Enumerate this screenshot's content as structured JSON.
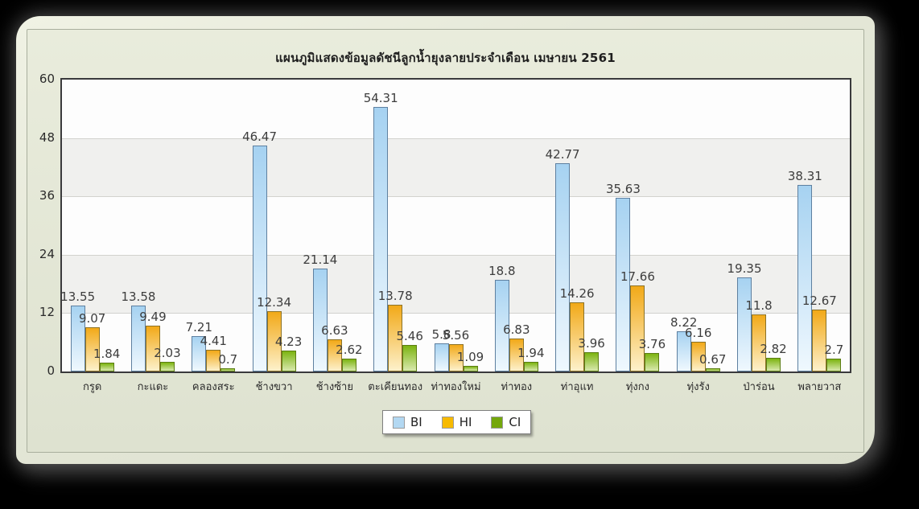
{
  "chart_data": {
    "type": "bar",
    "title": "แผนภูมิแสดงข้อมูลดัชนีลูกน้ำยุงลายประจำเดือน เมษายน  2561",
    "categories": [
      "กรูด",
      "กะแดะ",
      "คลองสระ",
      "ช้างขวา",
      "ช้างซ้าย",
      "ตะเคียนทอง",
      "ท่าทองใหม่",
      "ท่าทอง",
      "ท่าอุแท",
      "ทุ่งกง",
      "ทุ่งรัง",
      "ป่าร่อน",
      "พลายวาส"
    ],
    "series": [
      {
        "name": "BI",
        "values": [
          13.55,
          13.58,
          7.21,
          46.47,
          21.14,
          54.31,
          5.8,
          18.8,
          42.77,
          35.63,
          8.22,
          19.35,
          38.31
        ],
        "color_top": "#a6d2f1",
        "color_bottom": "#eff8fe",
        "border_color": "#5e80a0",
        "legend_swatch": "#b3d8f2"
      },
      {
        "name": "HI",
        "values": [
          9.07,
          9.49,
          4.41,
          12.34,
          6.63,
          13.78,
          5.56,
          6.83,
          14.26,
          17.66,
          6.16,
          11.8,
          12.67
        ],
        "color_top": "#f2a918",
        "color_bottom": "#fdf1cb",
        "border_color": "#8c7226",
        "legend_swatch": "#f7ba00"
      },
      {
        "name": "CI",
        "values": [
          1.84,
          2.03,
          0.7,
          4.23,
          2.62,
          5.46,
          1.09,
          1.94,
          3.96,
          3.76,
          0.67,
          2.82,
          2.7
        ],
        "color_top": "#7cb411",
        "color_bottom": "#d9e9ad",
        "border_color": "#5c7d14",
        "legend_swatch": "#74a70c"
      }
    ],
    "xlabel": "",
    "ylabel": "",
    "ylim": [
      0,
      60
    ],
    "yticks": [
      0,
      12,
      24,
      36,
      48,
      60
    ],
    "grid": true,
    "band_color": "#f0f0ee",
    "plot_bg": "#fdfdfd",
    "legend_position": "bottom-center",
    "legend_labels": [
      "BI",
      "HI",
      "CI"
    ]
  }
}
